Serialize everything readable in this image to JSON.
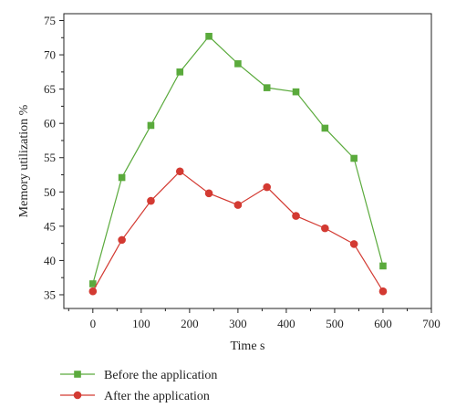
{
  "chart_data": {
    "type": "line",
    "xlabel": "Time s",
    "ylabel": "Memory utilization %",
    "xlim": [
      -60,
      700
    ],
    "ylim": [
      33,
      76
    ],
    "xticks": [
      0,
      100,
      200,
      300,
      400,
      500,
      600,
      700
    ],
    "yticks": [
      35,
      40,
      45,
      50,
      55,
      60,
      65,
      70,
      75
    ],
    "legend_position": "bottom-left, below plot",
    "grid": false,
    "series": [
      {
        "name": "Before the application",
        "color": "#5aaa3c",
        "marker": "square",
        "x": [
          0,
          60,
          120,
          180,
          240,
          300,
          360,
          420,
          480,
          540,
          600
        ],
        "y": [
          36.6,
          52.1,
          59.7,
          67.5,
          72.7,
          68.7,
          65.2,
          64.6,
          59.3,
          54.9,
          39.2
        ]
      },
      {
        "name": "After the application",
        "color": "#d33a32",
        "marker": "circle",
        "x": [
          0,
          60,
          120,
          180,
          240,
          300,
          360,
          420,
          480,
          540,
          600
        ],
        "y": [
          35.5,
          43.0,
          48.7,
          53.0,
          49.8,
          48.1,
          50.7,
          46.5,
          44.7,
          42.4,
          35.5
        ]
      }
    ]
  }
}
